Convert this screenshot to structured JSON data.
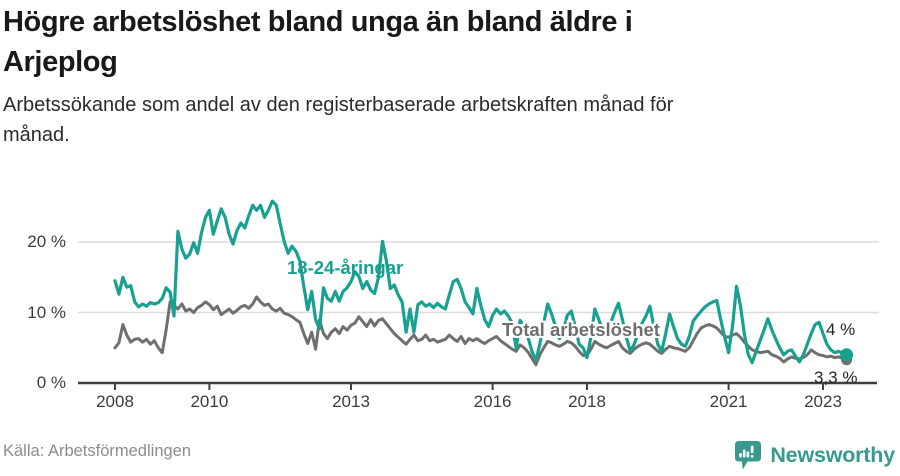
{
  "header": {
    "title_lines": [
      "Högre arbetslöshet bland unga än bland äldre i",
      "Arjeplog"
    ],
    "subtitle_lines": [
      "Arbetssökande som andel av den registerbaserade arbetskraften månad för",
      "månad."
    ]
  },
  "chart_data": {
    "type": "line",
    "title": "Högre arbetslöshet bland unga än bland äldre i Arjeplog",
    "subtitle": "Arbetssökande som andel av den registerbaserade arbetskraften månad för månad.",
    "unit": "%",
    "grid": "horizontal",
    "legend_position": "inline-labels",
    "x_axis": {
      "start_year": 2008,
      "frequency": "monthly",
      "tick_years": [
        2008,
        2010,
        2013,
        2016,
        2018,
        2021,
        2023
      ],
      "tick_labels": [
        "2008",
        "2010",
        "2013",
        "2016",
        "2018",
        "2021",
        "2023"
      ]
    },
    "y_axis": {
      "ticks": [
        0,
        10,
        20
      ],
      "tick_labels": [
        "0 %",
        "10 %",
        "20 %"
      ],
      "range": [
        0,
        27
      ]
    },
    "series": [
      {
        "name": "18-24-åringar",
        "color": "#18a191",
        "end_label": "4 %",
        "last_value": 4.0,
        "values": [
          14.5,
          12.6,
          15.0,
          13.6,
          13.8,
          11.5,
          10.8,
          11.2,
          10.9,
          11.4,
          11.2,
          11.4,
          12.0,
          13.5,
          12.9,
          9.5,
          21.5,
          19.0,
          17.7,
          18.3,
          19.9,
          18.4,
          21.3,
          23.5,
          24.5,
          21.1,
          23.0,
          24.7,
          23.5,
          21.1,
          19.7,
          21.6,
          22.7,
          22.0,
          23.7,
          25.2,
          24.5,
          25.2,
          23.5,
          24.5,
          25.8,
          25.2,
          22.6,
          20.1,
          18.4,
          19.4,
          18.7,
          17.3,
          13.7,
          10.4,
          13.0,
          9.0,
          7.7,
          13.5,
          12.0,
          11.6,
          13.0,
          11.6,
          13.0,
          13.5,
          14.4,
          15.8,
          15.1,
          13.4,
          14.4,
          13.2,
          12.7,
          15.0,
          20.1,
          17.3,
          13.4,
          13.9,
          12.5,
          11.5,
          7.2,
          10.5,
          7.2,
          11.1,
          11.5,
          10.9,
          11.2,
          10.7,
          11.3,
          10.8,
          10.5,
          12.5,
          14.4,
          14.7,
          13.4,
          11.5,
          10.7,
          9.8,
          13.4,
          11.0,
          9.0,
          8.0,
          9.6,
          10.5,
          9.8,
          10.2,
          9.5,
          8.5,
          4.9,
          8.9,
          8.0,
          6.5,
          4.5,
          3.2,
          5.5,
          8.5,
          11.2,
          9.8,
          8.0,
          6.3,
          7.5,
          9.6,
          10.2,
          8.0,
          5.5,
          5.0,
          3.6,
          6.5,
          10.5,
          9.0,
          7.5,
          6.9,
          8.5,
          10.0,
          11.3,
          9.0,
          6.5,
          4.5,
          5.5,
          7.0,
          8.5,
          9.5,
          10.9,
          8.0,
          5.5,
          4.5,
          7.0,
          9.8,
          8.0,
          6.3,
          5.5,
          5.2,
          6.6,
          8.8,
          9.5,
          10.2,
          10.8,
          11.2,
          11.5,
          11.7,
          9.0,
          6.5,
          4.3,
          8.0,
          13.7,
          11.0,
          7.0,
          4.0,
          2.9,
          4.5,
          6.0,
          7.5,
          9.1,
          7.5,
          6.2,
          5.0,
          4.0,
          4.5,
          4.7,
          3.8,
          3.0,
          4.0,
          5.5,
          7.0,
          8.3,
          8.6,
          7.0,
          5.5,
          4.7,
          4.3,
          4.5,
          4.2,
          4.0
        ]
      },
      {
        "name": "Total arbetslöshet",
        "color": "#6f6f6f",
        "end_label": "3,3 %",
        "last_value": 3.3,
        "values": [
          5.0,
          5.7,
          8.3,
          6.8,
          5.8,
          6.2,
          6.3,
          5.8,
          6.2,
          5.5,
          6.0,
          5.0,
          4.3,
          7.5,
          11.5,
          11.0,
          10.5,
          11.2,
          10.2,
          10.5,
          10.0,
          10.7,
          11.0,
          11.5,
          11.1,
          10.4,
          10.9,
          9.7,
          10.1,
          10.5,
          9.9,
          10.3,
          10.8,
          11.0,
          10.6,
          11.2,
          12.2,
          11.5,
          11.0,
          11.2,
          10.5,
          10.2,
          10.6,
          9.9,
          9.7,
          9.4,
          9.0,
          8.6,
          7.0,
          5.6,
          7.2,
          4.8,
          9.0,
          7.0,
          6.3,
          7.2,
          7.7,
          7.0,
          8.0,
          7.5,
          8.2,
          8.5,
          9.4,
          8.7,
          8.0,
          9.0,
          8.1,
          8.9,
          9.1,
          8.4,
          7.7,
          7.0,
          6.5,
          6.0,
          5.5,
          6.2,
          6.8,
          6.0,
          6.2,
          6.8,
          6.0,
          6.2,
          5.8,
          6.0,
          6.2,
          6.8,
          6.3,
          5.9,
          6.6,
          5.6,
          6.3,
          6.0,
          6.3,
          5.9,
          5.6,
          6.0,
          6.3,
          6.6,
          6.0,
          5.6,
          5.2,
          4.8,
          4.5,
          5.4,
          5.0,
          4.4,
          3.5,
          2.6,
          4.0,
          5.0,
          5.9,
          5.7,
          5.4,
          5.2,
          5.5,
          5.9,
          5.7,
          5.2,
          4.5,
          3.9,
          3.9,
          4.8,
          5.9,
          5.5,
          5.2,
          5.0,
          5.3,
          5.6,
          5.9,
          5.0,
          4.5,
          4.2,
          4.8,
          5.2,
          5.5,
          5.7,
          5.5,
          5.0,
          4.5,
          4.2,
          4.8,
          5.2,
          5.0,
          4.9,
          4.7,
          4.5,
          5.0,
          6.0,
          7.0,
          7.8,
          8.1,
          8.3,
          8.1,
          7.8,
          7.2,
          6.6,
          6.5,
          6.8,
          7.0,
          6.5,
          5.8,
          5.2,
          4.7,
          4.5,
          4.3,
          4.4,
          4.5,
          4.0,
          3.8,
          3.5,
          3.0,
          3.4,
          3.7,
          3.5,
          3.4,
          3.6,
          4.0,
          4.7,
          4.3,
          4.0,
          3.9,
          3.7,
          3.8,
          3.6,
          3.7,
          3.5,
          3.3
        ]
      }
    ]
  },
  "footer": {
    "source": "Källa: Arbetsförmedlingen",
    "logo_text": "Newsworthy"
  },
  "colors": {
    "accent_teal": "#18a191",
    "line_gray": "#6f6f6f",
    "logo_teal": "#38998e",
    "gridline": "#dcdcdc",
    "axis": "#3f3f3f"
  }
}
